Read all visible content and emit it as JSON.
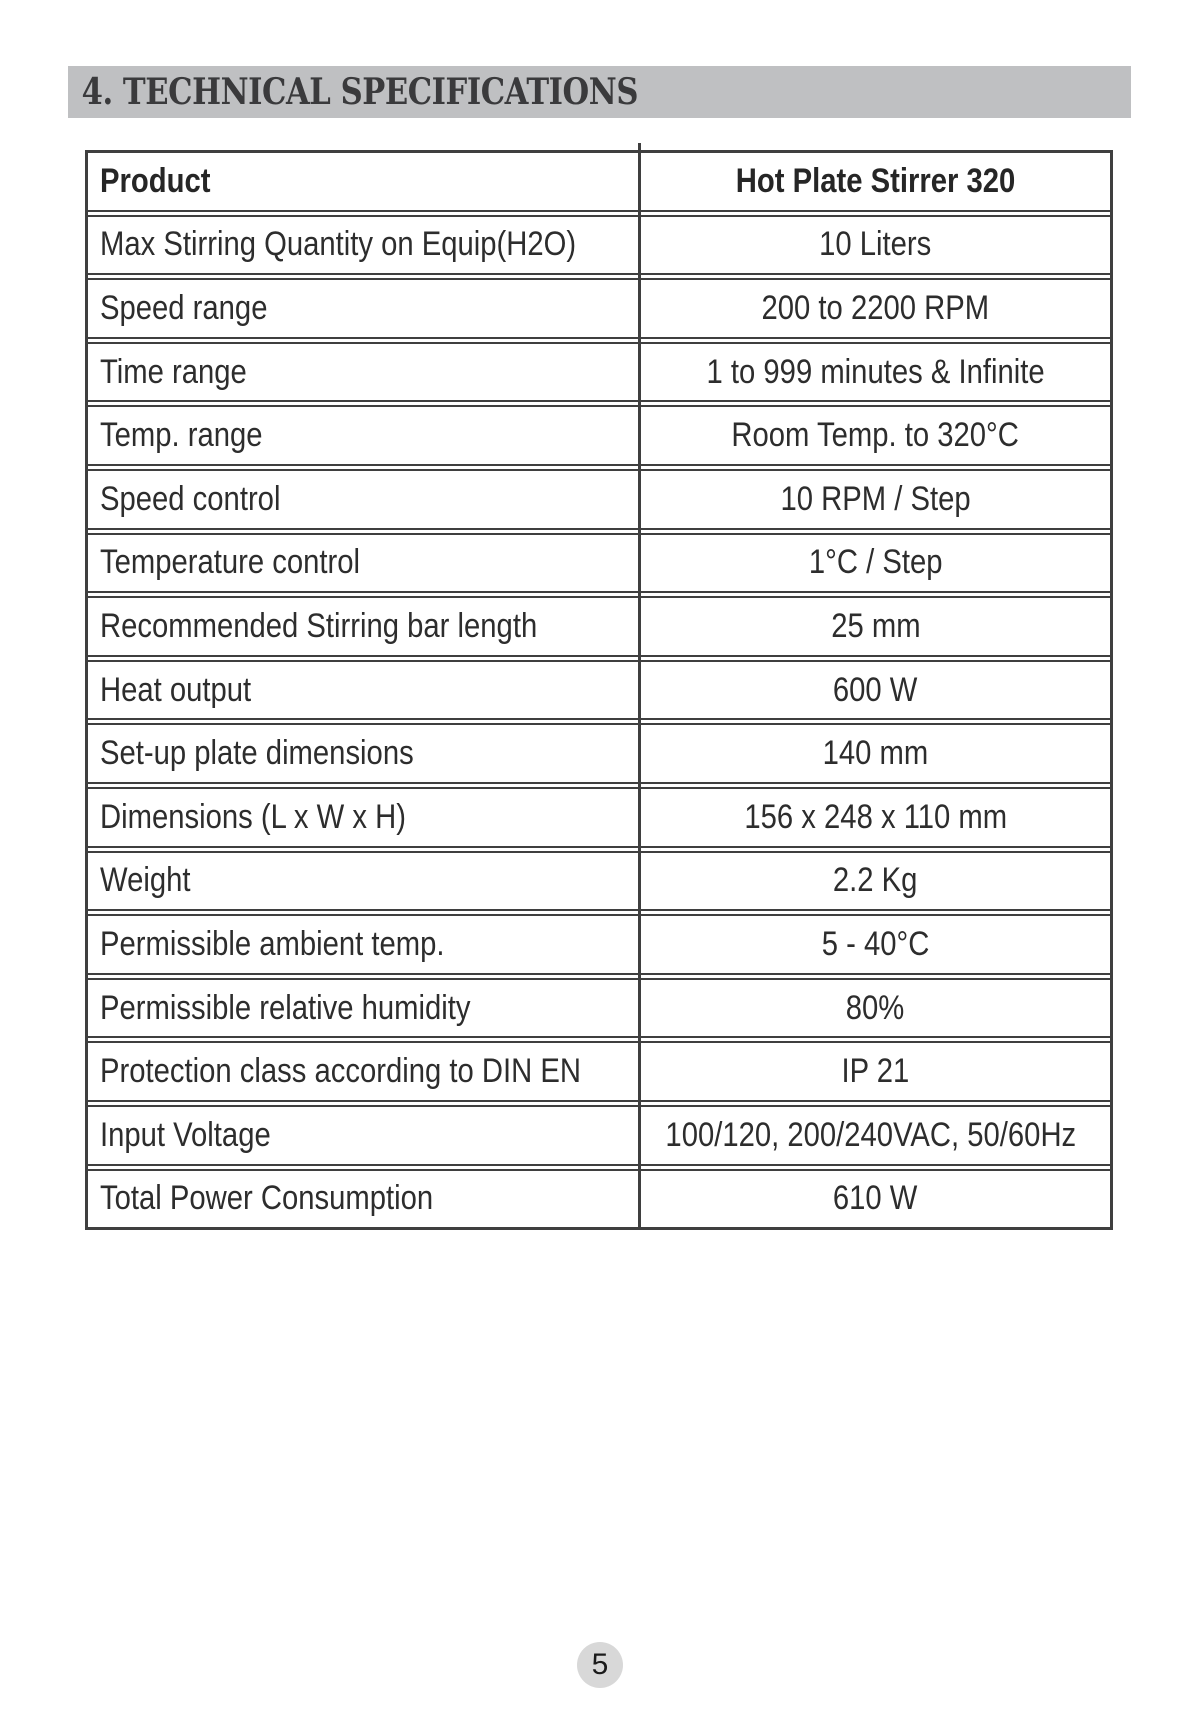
{
  "header": {
    "title": "4. TECHNICAL SPECIFICATIONS"
  },
  "spec_table": {
    "header": {
      "label": "Product",
      "value": "Hot Plate Stirrer 320"
    },
    "rows": [
      {
        "label": "Max Stirring Quantity on Equip(H2O)",
        "value": "10 Liters"
      },
      {
        "label": "Speed range",
        "value": "200 to 2200 RPM"
      },
      {
        "label": "Time range",
        "value": "1 to 999 minutes & Infinite"
      },
      {
        "label": "Temp. range",
        "value": "Room Temp. to 320°C"
      },
      {
        "label": "Speed control",
        "value": "10 RPM / Step"
      },
      {
        "label": "Temperature control",
        "value": "1°C / Step"
      },
      {
        "label": "Recommended Stirring bar length",
        "value": "25 mm"
      },
      {
        "label": "Heat output",
        "value": "600 W"
      },
      {
        "label": "Set-up plate dimensions",
        "value": "140 mm"
      },
      {
        "label": "Dimensions (L x W x H)",
        "value": "156 x 248 x 110 mm"
      },
      {
        "label": "Weight",
        "value": "2.2 Kg"
      },
      {
        "label": "Permissible ambient temp.",
        "value": "5 - 40°C"
      },
      {
        "label": "Permissible relative humidity",
        "value": "80%"
      },
      {
        "label": "Protection class according to DIN EN",
        "value": "IP 21"
      },
      {
        "label": "Input Voltage",
        "value": "100/120, 200/240VAC, 50/60Hz"
      },
      {
        "label": "Total Power Consumption",
        "value": "610 W"
      }
    ]
  },
  "footer": {
    "page_number": "5"
  },
  "colors": {
    "title_bar_bg": "#bfc0c2",
    "title_text": "#3a3a3c",
    "table_border": "#3f3f3f",
    "table_text": "#2d2d2d",
    "page_badge_bg": "#d8d8d8"
  }
}
